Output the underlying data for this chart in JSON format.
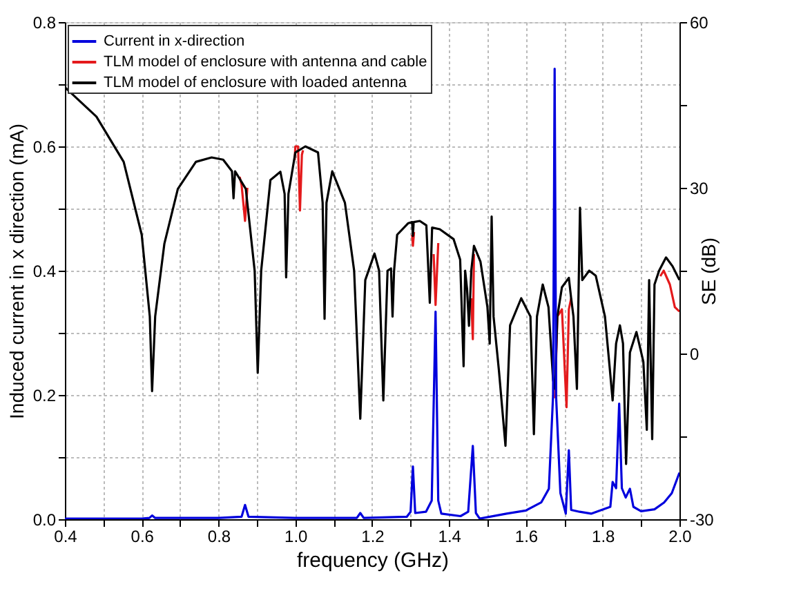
{
  "chart_data": {
    "type": "line",
    "xlabel": "frequency (GHz)",
    "ylabel": "Induced current in x direction (mA)",
    "y2label": "SE (dB)",
    "xlim": [
      0.4,
      2.0
    ],
    "ylim": [
      0,
      0.8
    ],
    "y2lim": [
      -30,
      60
    ],
    "xticks": [
      {
        "value": 0.4,
        "label": "0.4"
      },
      {
        "value": 0.5,
        "label": null
      },
      {
        "value": 0.6,
        "label": "0.6"
      },
      {
        "value": 0.7,
        "label": null
      },
      {
        "value": 0.8,
        "label": "0.8"
      },
      {
        "value": 0.9,
        "label": null
      },
      {
        "value": 1.0,
        "label": "1.0"
      },
      {
        "value": 1.1,
        "label": null
      },
      {
        "value": 1.2,
        "label": "1.2"
      },
      {
        "value": 1.3,
        "label": null
      },
      {
        "value": 1.4,
        "label": "1.4"
      },
      {
        "value": 1.5,
        "label": null
      },
      {
        "value": 1.6,
        "label": "1.6"
      },
      {
        "value": 1.7,
        "label": null
      },
      {
        "value": 1.8,
        "label": "1.8"
      },
      {
        "value": 1.9,
        "label": null
      },
      {
        "value": 2.0,
        "label": "2.0"
      }
    ],
    "yticks": [
      {
        "value": 0,
        "label": "0.0"
      },
      {
        "value": 0.1,
        "label": null
      },
      {
        "value": 0.2,
        "label": "0.2"
      },
      {
        "value": 0.3,
        "label": null
      },
      {
        "value": 0.4,
        "label": "0.4"
      },
      {
        "value": 0.5,
        "label": null
      },
      {
        "value": 0.6,
        "label": "0.6"
      },
      {
        "value": 0.7,
        "label": null
      },
      {
        "value": 0.8,
        "label": "0.8"
      }
    ],
    "y2ticks": [
      -30,
      {
        "value": -15,
        "label": null
      },
      0,
      {
        "value": 15,
        "label": null
      },
      30,
      {
        "value": 45,
        "label": null
      },
      60
    ],
    "grid": true,
    "legend": "top left",
    "marker": "none",
    "line_style": "solid",
    "series": [
      {
        "name": "Current in x-direction",
        "color": "#0000dd",
        "axis": "y",
        "x": [
          0.4,
          0.6,
          0.62,
          0.627,
          0.635,
          0.8,
          0.86,
          0.869,
          0.878,
          1.0,
          1.16,
          1.169,
          1.178,
          1.29,
          1.3,
          1.306,
          1.312,
          1.34,
          1.355,
          1.365,
          1.372,
          1.38,
          1.43,
          1.45,
          1.462,
          1.47,
          1.48,
          1.55,
          1.6,
          1.64,
          1.66,
          1.671,
          1.675,
          1.679,
          1.69,
          1.704,
          1.712,
          1.718,
          1.74,
          1.77,
          1.82,
          1.826,
          1.835,
          1.843,
          1.85,
          1.86,
          1.871,
          1.88,
          1.9,
          1.935,
          1.96,
          1.98,
          2.0
        ],
        "values": [
          0.001,
          0.001,
          0.002,
          0.006,
          0.002,
          0.002,
          0.004,
          0.023,
          0.004,
          0.002,
          0.002,
          0.01,
          0.002,
          0.004,
          0.012,
          0.085,
          0.01,
          0.012,
          0.03,
          0.334,
          0.03,
          0.009,
          0.005,
          0.012,
          0.118,
          0.01,
          0.001,
          0.009,
          0.014,
          0.027,
          0.049,
          0.2,
          0.725,
          0.195,
          0.042,
          0.009,
          0.111,
          0.015,
          0.012,
          0.009,
          0.02,
          0.06,
          0.05,
          0.186,
          0.05,
          0.035,
          0.049,
          0.02,
          0.013,
          0.016,
          0.027,
          0.042,
          0.075
        ]
      },
      {
        "name": "TLM model of enclosure with antenna and cable",
        "color": "#e41a1c",
        "axis": "y2",
        "x": [
          0.855,
          0.86,
          0.869,
          0.875,
          0.9,
          0.998,
          1.0,
          1.007,
          1.012,
          1.017,
          1.02,
          1.1,
          1.304,
          1.306,
          1.309,
          1.33,
          1.36,
          1.365,
          1.372,
          1.4,
          1.458,
          1.462,
          1.465,
          1.6,
          1.672,
          1.676,
          1.682,
          1.694,
          1.706,
          1.712,
          1.718,
          1.9,
          1.95,
          1.959,
          1.975,
          1.988,
          2.0
        ],
        "values": [
          32,
          30.5,
          24,
          30,
          null,
          35,
          37.5,
          37.5,
          25.9,
          36,
          36.8,
          null,
          21.5,
          19.5,
          22,
          null,
          18,
          8.8,
          20,
          null,
          10,
          2.6,
          18,
          null,
          null,
          -8.1,
          6.7,
          8,
          -9.7,
          8,
          10,
          null,
          14,
          15,
          12.5,
          8.4,
          7.6
        ]
      },
      {
        "name": "TLM model of enclosure with loaded antenna",
        "color": "#000000",
        "axis": "y2",
        "x": [
          0.4,
          0.482,
          0.553,
          0.6,
          0.621,
          0.627,
          0.635,
          0.659,
          0.694,
          0.741,
          0.782,
          0.812,
          0.835,
          0.839,
          0.843,
          0.871,
          0.894,
          0.902,
          0.911,
          0.935,
          0.961,
          0.972,
          0.976,
          0.982,
          1.0,
          1.026,
          1.059,
          1.071,
          1.076,
          1.081,
          1.096,
          1.129,
          1.153,
          1.169,
          1.182,
          1.206,
          1.218,
          1.229,
          1.24,
          1.249,
          1.253,
          1.257,
          1.265,
          1.294,
          1.304,
          1.306,
          1.308,
          1.324,
          1.341,
          1.35,
          1.356,
          1.376,
          1.412,
          1.429,
          1.438,
          1.442,
          1.447,
          1.452,
          1.458,
          1.465,
          1.482,
          1.5,
          1.506,
          1.511,
          1.516,
          1.53,
          1.547,
          1.559,
          1.588,
          1.612,
          1.621,
          1.629,
          1.644,
          1.659,
          1.671,
          1.676,
          1.682,
          1.694,
          1.712,
          1.718,
          1.724,
          1.733,
          1.741,
          1.747,
          1.765,
          1.782,
          1.806,
          1.818,
          1.826,
          1.835,
          1.845,
          1.853,
          1.861,
          1.871,
          1.888,
          1.906,
          1.915,
          1.921,
          1.929,
          1.935,
          1.947,
          1.965,
          1.982,
          2.0
        ],
        "values": [
          48.2,
          42.9,
          34.7,
          21.5,
          6.7,
          -6.8,
          6.7,
          19.9,
          29.8,
          34.7,
          35.5,
          35.1,
          33,
          28.1,
          33,
          29.8,
          15,
          -3.5,
          15,
          31.4,
          32.9,
          28.9,
          13.8,
          28.9,
          36.4,
          37.5,
          36.4,
          27.3,
          6.3,
          27.3,
          33,
          27.3,
          15,
          -11.8,
          13.3,
          18.1,
          15,
          -8.5,
          15,
          15.4,
          6.7,
          15,
          21.5,
          23.6,
          23.8,
          21.3,
          23.8,
          24,
          23.2,
          9.2,
          22.8,
          22.5,
          20.7,
          17,
          -2.3,
          15,
          11.7,
          5,
          15,
          19.5,
          16.6,
          8.4,
          1.8,
          24.8,
          6.7,
          -3.1,
          -16.7,
          5.1,
          10,
          6.7,
          -14.6,
          6.7,
          12.5,
          8.4,
          -4.8,
          -6.4,
          6.7,
          12,
          13.7,
          10,
          6.7,
          -6.4,
          26.4,
          13.3,
          15,
          14.1,
          6.7,
          -2.3,
          -8.5,
          1.8,
          5.1,
          1.8,
          -20,
          0.2,
          3.9,
          -1.5,
          -13.8,
          13.3,
          -15.5,
          12.5,
          15,
          17.4,
          15.8,
          13.3
        ]
      }
    ]
  }
}
